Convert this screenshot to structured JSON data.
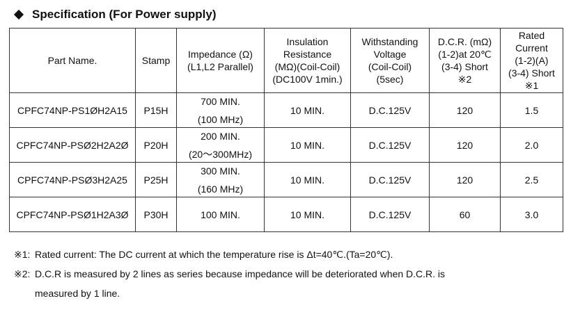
{
  "title": "Specification (For Power supply)",
  "headers": {
    "part_name": "Part Name.",
    "stamp": "Stamp",
    "impedance": [
      "Impedance (Ω)",
      "(L1,L2 Parallel)"
    ],
    "insulation": [
      "Insulation",
      "Resistance",
      "(MΩ)(Coil-Coil)",
      "(DC100V 1min.)"
    ],
    "withstanding": [
      "Withstanding",
      "Voltage",
      "(Coil-Coil)",
      "(5sec)"
    ],
    "dcr": [
      "D.C.R. (mΩ)",
      "(1-2)at 20℃",
      "(3-4) Short",
      "※2"
    ],
    "rated": [
      "Rated",
      "Current",
      "(1-2)(A)",
      "(3-4) Short",
      "※1"
    ]
  },
  "rows": [
    {
      "part": "CPFC74NP-PS1ØH2A15",
      "stamp": "P15H",
      "imp": "700 MIN.",
      "imp_freq": "(100 MHz)",
      "ins": "10 MIN.",
      "volt": "D.C.125V",
      "dcr": "120",
      "rated": "1.5"
    },
    {
      "part": "CPFC74NP-PSØ2H2A2Ø",
      "stamp": "P20H",
      "imp": "200 MIN.",
      "imp_freq": "(20～300MHz)",
      "ins": "10 MIN.",
      "volt": "D.C.125V",
      "dcr": "120",
      "rated": "2.0"
    },
    {
      "part": "CPFC74NP-PSØ3H2A25",
      "stamp": "P25H",
      "imp": "300 MIN.",
      "imp_freq": "(160 MHz)",
      "ins": "10 MIN.",
      "volt": "D.C.125V",
      "dcr": "120",
      "rated": "2.5"
    },
    {
      "part": "CPFC74NP-PSØ1H2A3Ø",
      "stamp": "P30H",
      "imp": "100 MIN.",
      "imp_freq": "",
      "ins": "10 MIN.",
      "volt": "D.C.125V",
      "dcr": "60",
      "rated": "3.0"
    }
  ],
  "notes": [
    {
      "mark": "※1:",
      "text": "Rated current: The DC current at which the temperature rise is Δt=40℃.(Ta=20℃).",
      "cont": ""
    },
    {
      "mark": "※2:",
      "text": "D.C.R is measured by 2 lines as series because impedance will be deteriorated when D.C.R. is",
      "cont": "measured by 1 line."
    }
  ]
}
